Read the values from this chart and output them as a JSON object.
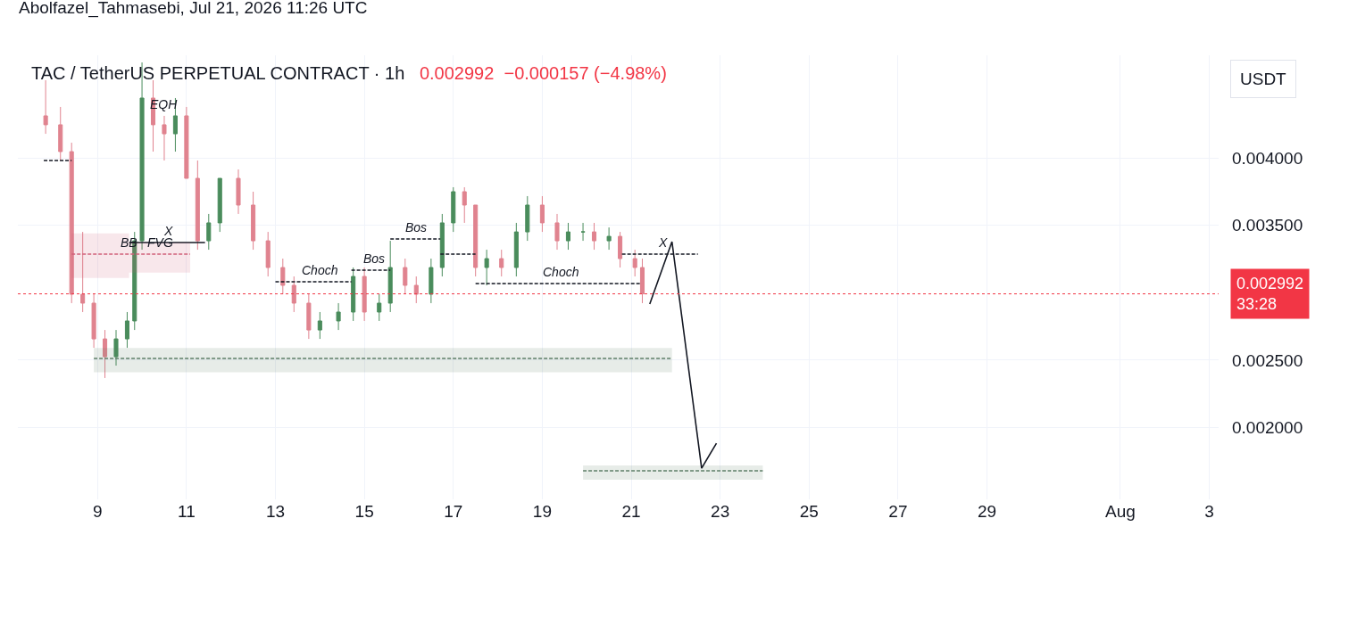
{
  "chart_data": {
    "type": "candlestick",
    "title": "TAC / TetherUS PERPETUAL CONTRACT · 1h",
    "subtitle": "0.002992  −0.000157 (−4.98%)",
    "ylabel": "USDT",
    "annotations": [
      "Abolfazel_Tahmasebi, Jul 21, 2026 11:26 UTC",
      {
        "text": "EQH",
        "x": "2026-07-10T12:00",
        "y": 0.004311
      },
      {
        "text": "X",
        "x": "2026-07-10T14:00",
        "y": 0.003372
      },
      {
        "text": "BB",
        "x": "2026-07-09T17:00",
        "y": 0.003286
      },
      {
        "text": "FVG",
        "x": "2026-07-10T10:00",
        "y": 0.003286
      },
      {
        "text": "Choch",
        "x": "2026-07-14T00:00",
        "y": 0.003081
      },
      {
        "text": "Bos",
        "x": "2026-07-15T05:00",
        "y": 0.003167
      },
      {
        "text": "Bos",
        "x": "2026-07-16T04:00",
        "y": 0.003399
      },
      {
        "text": "Choch",
        "x": "2026-07-19T10:00",
        "y": 0.003068
      },
      {
        "text": "X",
        "x": "2026-07-21T17:00",
        "y": 0.003286
      }
    ],
    "x": [
      "2026-07-07T20:00",
      "2026-07-08T04:00",
      "2026-07-08T10:00",
      "2026-07-08T16:00",
      "2026-07-08T22:00",
      "2026-07-09T04:00",
      "2026-07-09T10:00",
      "2026-07-09T16:00",
      "2026-07-09T20:00",
      "2026-07-10T00:00",
      "2026-07-10T06:00",
      "2026-07-10T12:00",
      "2026-07-10T18:00",
      "2026-07-11T00:00",
      "2026-07-11T06:00",
      "2026-07-11T12:00",
      "2026-07-11T18:00",
      "2026-07-12T04:00",
      "2026-07-12T12:00",
      "2026-07-12T20:00",
      "2026-07-13T04:00",
      "2026-07-13T10:00",
      "2026-07-13T18:00",
      "2026-07-14T00:00",
      "2026-07-14T10:00",
      "2026-07-14T18:00",
      "2026-07-15T00:00",
      "2026-07-15T08:00",
      "2026-07-15T14:00",
      "2026-07-15T22:00",
      "2026-07-16T04:00",
      "2026-07-16T12:00",
      "2026-07-16T18:00",
      "2026-07-17T00:00",
      "2026-07-17T06:00",
      "2026-07-17T12:00",
      "2026-07-17T18:00",
      "2026-07-18T02:00",
      "2026-07-18T10:00",
      "2026-07-18T16:00",
      "2026-07-19T00:00",
      "2026-07-19T08:00",
      "2026-07-19T14:00",
      "2026-07-19T22:00",
      "2026-07-20T04:00",
      "2026-07-20T12:00",
      "2026-07-20T18:00",
      "2026-07-21T02:00",
      "2026-07-21T06:00"
    ],
    "ohlc": [
      [
        0.004311,
        0.004575,
        0.004178,
        0.004245
      ],
      [
        0.004245,
        0.004377,
        0.00398,
        0.004046
      ],
      [
        0.004046,
        0.004112,
        0.002923,
        0.002989
      ],
      [
        0.002989,
        0.003451,
        0.002857,
        0.002923
      ],
      [
        0.002923,
        0.002989,
        0.002592,
        0.002658
      ],
      [
        0.002658,
        0.002724,
        0.002368,
        0.002526
      ],
      [
        0.002526,
        0.002724,
        0.00246,
        0.002658
      ],
      [
        0.002658,
        0.002857,
        0.002592,
        0.002791
      ],
      [
        0.002791,
        0.003451,
        0.002724,
        0.003385
      ],
      [
        0.003385,
        0.004707,
        0.003319,
        0.004443
      ],
      [
        0.004443,
        0.004575,
        0.004046,
        0.004245
      ],
      [
        0.004245,
        0.004311,
        0.00398,
        0.004178
      ],
      [
        0.004178,
        0.004443,
        0.004046,
        0.004311
      ],
      [
        0.004311,
        0.004377,
        0.003848,
        0.003848
      ],
      [
        0.003848,
        0.00398,
        0.003319,
        0.003385
      ],
      [
        0.003385,
        0.003584,
        0.003319,
        0.003518
      ],
      [
        0.003518,
        0.003848,
        0.003451,
        0.003848
      ],
      [
        0.003848,
        0.003914,
        0.003584,
        0.00365
      ],
      [
        0.00365,
        0.003749,
        0.003319,
        0.003385
      ],
      [
        0.003385,
        0.003451,
        0.003121,
        0.003187
      ],
      [
        0.003187,
        0.003253,
        0.002989,
        0.003055
      ],
      [
        0.003055,
        0.003121,
        0.002857,
        0.002923
      ],
      [
        0.002923,
        0.002989,
        0.002658,
        0.002724
      ],
      [
        0.002724,
        0.002857,
        0.002658,
        0.002791
      ],
      [
        0.002791,
        0.002923,
        0.002724,
        0.002857
      ],
      [
        0.002857,
        0.003187,
        0.002791,
        0.003121
      ],
      [
        0.003121,
        0.003187,
        0.002791,
        0.002857
      ],
      [
        0.002857,
        0.002989,
        0.002791,
        0.002923
      ],
      [
        0.002923,
        0.003385,
        0.002857,
        0.003187
      ],
      [
        0.003187,
        0.003253,
        0.002989,
        0.003055
      ],
      [
        0.003055,
        0.003121,
        0.002923,
        0.002989
      ],
      [
        0.002989,
        0.003253,
        0.002923,
        0.003187
      ],
      [
        0.003187,
        0.003584,
        0.003121,
        0.003518
      ],
      [
        0.003518,
        0.003782,
        0.003451,
        0.003749
      ],
      [
        0.003749,
        0.003782,
        0.003518,
        0.00365
      ],
      [
        0.00365,
        0.00365,
        0.003121,
        0.003187
      ],
      [
        0.003187,
        0.003319,
        0.003055,
        0.003253
      ],
      [
        0.003253,
        0.003319,
        0.003121,
        0.003187
      ],
      [
        0.003187,
        0.003518,
        0.003121,
        0.003451
      ],
      [
        0.003451,
        0.003716,
        0.003385,
        0.00365
      ],
      [
        0.00365,
        0.003716,
        0.003451,
        0.003518
      ],
      [
        0.003518,
        0.003584,
        0.003319,
        0.003385
      ],
      [
        0.003385,
        0.003518,
        0.003319,
        0.003451
      ],
      [
        0.003451,
        0.003518,
        0.003385,
        0.003451
      ],
      [
        0.003451,
        0.003518,
        0.003319,
        0.003385
      ],
      [
        0.003385,
        0.003484,
        0.003319,
        0.003418
      ],
      [
        0.003418,
        0.003451,
        0.003187,
        0.003253
      ],
      [
        0.003253,
        0.003319,
        0.003121,
        0.003187
      ],
      [
        0.003187,
        0.003253,
        0.002923,
        0.002992
      ]
    ],
    "colors": [
      "#e0838f",
      "#e0838f",
      "#e0838f",
      "#e0838f",
      "#e0838f",
      "#e0838f",
      "#4a8c5c",
      "#4a8c5c",
      "#4a8c5c",
      "#4a8c5c",
      "#e0838f",
      "#e0838f",
      "#4a8c5c",
      "#e0838f",
      "#e0838f",
      "#4a8c5c",
      "#4a8c5c",
      "#e0838f",
      "#e0838f",
      "#e0838f",
      "#e0838f",
      "#e0838f",
      "#e0838f",
      "#4a8c5c",
      "#4a8c5c",
      "#4a8c5c",
      "#e0838f",
      "#4a8c5c",
      "#4a8c5c",
      "#e0838f",
      "#e0838f",
      "#4a8c5c",
      "#4a8c5c",
      "#4a8c5c",
      "#e0838f",
      "#e0838f",
      "#4a8c5c",
      "#e0838f",
      "#4a8c5c",
      "#4a8c5c",
      "#e0838f",
      "#e0838f",
      "#4a8c5c",
      "#4a8c5c",
      "#e0838f",
      "#4a8c5c",
      "#e0838f",
      "#e0838f",
      "#e0838f"
    ],
    "series": [
      {
        "type": "line",
        "color": "#131722",
        "line_style": "dashed",
        "x": [
          "2026-07-07T19:00",
          "2026-07-08T10:00"
        ],
        "values": [
          0.00398,
          0.00398
        ]
      },
      {
        "type": "line",
        "color": "#131722",
        "line_style": "solid",
        "x": [
          "2026-07-09T17:00",
          "2026-07-11T10:00"
        ],
        "values": [
          0.003372,
          0.003372
        ]
      },
      {
        "type": "step",
        "color": "#d0607a",
        "line_style": "dashed",
        "x": [
          "2026-07-08T10:00",
          "2026-07-09T17:00",
          "2026-07-11T02:00"
        ],
        "values": [
          0.003286,
          0.003286,
          0.003286
        ],
        "lower": [
          0.00311,
          0.00315,
          0.00315
        ],
        "upper": [
          0.00344,
          0.00337,
          0.00337
        ]
      },
      {
        "type": "line",
        "color": "#131722",
        "line_style": "dashed",
        "x": [
          "2026-07-13T00:00",
          "2026-07-14T17:00"
        ],
        "values": [
          0.003081,
          0.003081
        ]
      },
      {
        "type": "line",
        "color": "#131722",
        "line_style": "dashed",
        "x": [
          "2026-07-14T17:00",
          "2026-07-15T14:00"
        ],
        "values": [
          0.003167,
          0.003167
        ]
      },
      {
        "type": "line",
        "color": "#131722",
        "line_style": "dashed",
        "x": [
          "2026-07-15T14:00",
          "2026-07-16T17:00"
        ],
        "values": [
          0.003399,
          0.003399
        ]
      },
      {
        "type": "line",
        "color": "#131722",
        "line_style": "dashed",
        "x": [
          "2026-07-16T17:00",
          "2026-07-17T12:00"
        ],
        "values": [
          0.003286,
          0.003286
        ]
      },
      {
        "type": "line",
        "color": "#131722",
        "line_style": "dashed",
        "x": [
          "2026-07-17T12:00",
          "2026-07-21T05:00"
        ],
        "values": [
          0.003068,
          0.003068
        ]
      },
      {
        "type": "line",
        "color": "#131722",
        "line_style": "dashed",
        "x": [
          "2026-07-20T19:00",
          "2026-07-22T12:00"
        ],
        "values": [
          0.003286,
          0.003286
        ]
      },
      {
        "type": "line",
        "color": "#5f7f68",
        "line_style": "dashed",
        "x": [
          "2026-07-08T22:00",
          "2026-07-21T22:00"
        ],
        "values": [
          0.002513,
          0.002513
        ],
        "lower": [
          0.00241,
          0.00241
        ],
        "upper": [
          0.00259,
          0.00259
        ]
      },
      {
        "type": "line",
        "color": "#5f7f68",
        "line_style": "dashed",
        "x": [
          "2026-07-19T22:00",
          "2026-07-23T23:00"
        ],
        "values": [
          0.00168,
          0.00168
        ],
        "lower": [
          0.001614,
          0.001614
        ],
        "upper": [
          0.00172,
          0.00172
        ]
      },
      {
        "type": "line",
        "color": "#131722",
        "line_style": "solid",
        "x": [
          "2026-07-21T10:00",
          "2026-07-21T22:00",
          "2026-07-22T14:00",
          "2026-07-22T22:00"
        ],
        "values": [
          0.002916,
          0.003379,
          0.0017,
          0.001885
        ]
      }
    ],
    "ref_lines": [
      {
        "axis": "y",
        "value": 0.002992,
        "label": "0.002992\n33:28",
        "color": "#f23645",
        "line_style": "dotted"
      }
    ],
    "xlim": [
      "2026-07-07T05:00",
      "2026-08-03T05:00"
    ],
    "xticks": [
      {
        "value": "2026-07-09",
        "label": "9"
      },
      {
        "value": "2026-07-11",
        "label": "11"
      },
      {
        "value": "2026-07-13",
        "label": "13"
      },
      {
        "value": "2026-07-15",
        "label": "15"
      },
      {
        "value": "2026-07-17",
        "label": "17"
      },
      {
        "value": "2026-07-19",
        "label": "19"
      },
      {
        "value": "2026-07-21",
        "label": "21"
      },
      {
        "value": "2026-07-23",
        "label": "23"
      },
      {
        "value": "2026-07-25",
        "label": "25"
      },
      {
        "value": "2026-07-27",
        "label": "27"
      },
      {
        "value": "2026-07-29",
        "label": "29"
      },
      {
        "value": "2026-08-01",
        "label": "Aug"
      },
      {
        "value": "2026-08-03",
        "label": "3"
      }
    ],
    "ylim": [
      0.001469,
      0.00476
    ],
    "yticks": [
      {
        "value": 0.002,
        "label": "0.002000"
      },
      {
        "value": 0.0025,
        "label": "0.002500"
      },
      {
        "value": 0.0035,
        "label": "0.003500"
      },
      {
        "value": 0.004,
        "label": "0.004000"
      }
    ],
    "grid": true
  }
}
